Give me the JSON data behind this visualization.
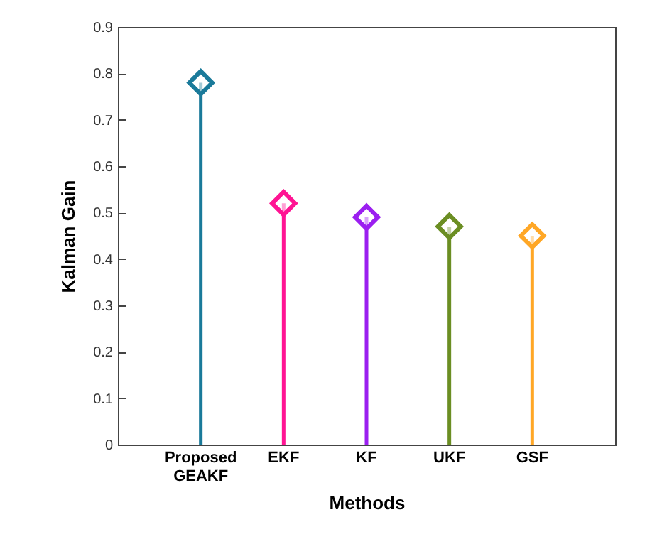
{
  "chart_data": {
    "type": "lollipop",
    "xlabel": "Methods",
    "ylabel": "Kalman Gain",
    "categories": [
      "Proposed GEAKF",
      "EKF",
      "KF",
      "UKF",
      "GSF"
    ],
    "values": [
      0.78,
      0.52,
      0.49,
      0.47,
      0.45
    ],
    "colors": [
      "#1a7a9a",
      "#ff1493",
      "#9b1ff0",
      "#6b8e23",
      "#ffa726"
    ],
    "ylim": [
      0,
      0.9
    ],
    "yticks": [
      0,
      0.1,
      0.2,
      0.3,
      0.4,
      0.5,
      0.6,
      0.7,
      0.8,
      0.9
    ],
    "grid": false,
    "marker": "diamond"
  }
}
